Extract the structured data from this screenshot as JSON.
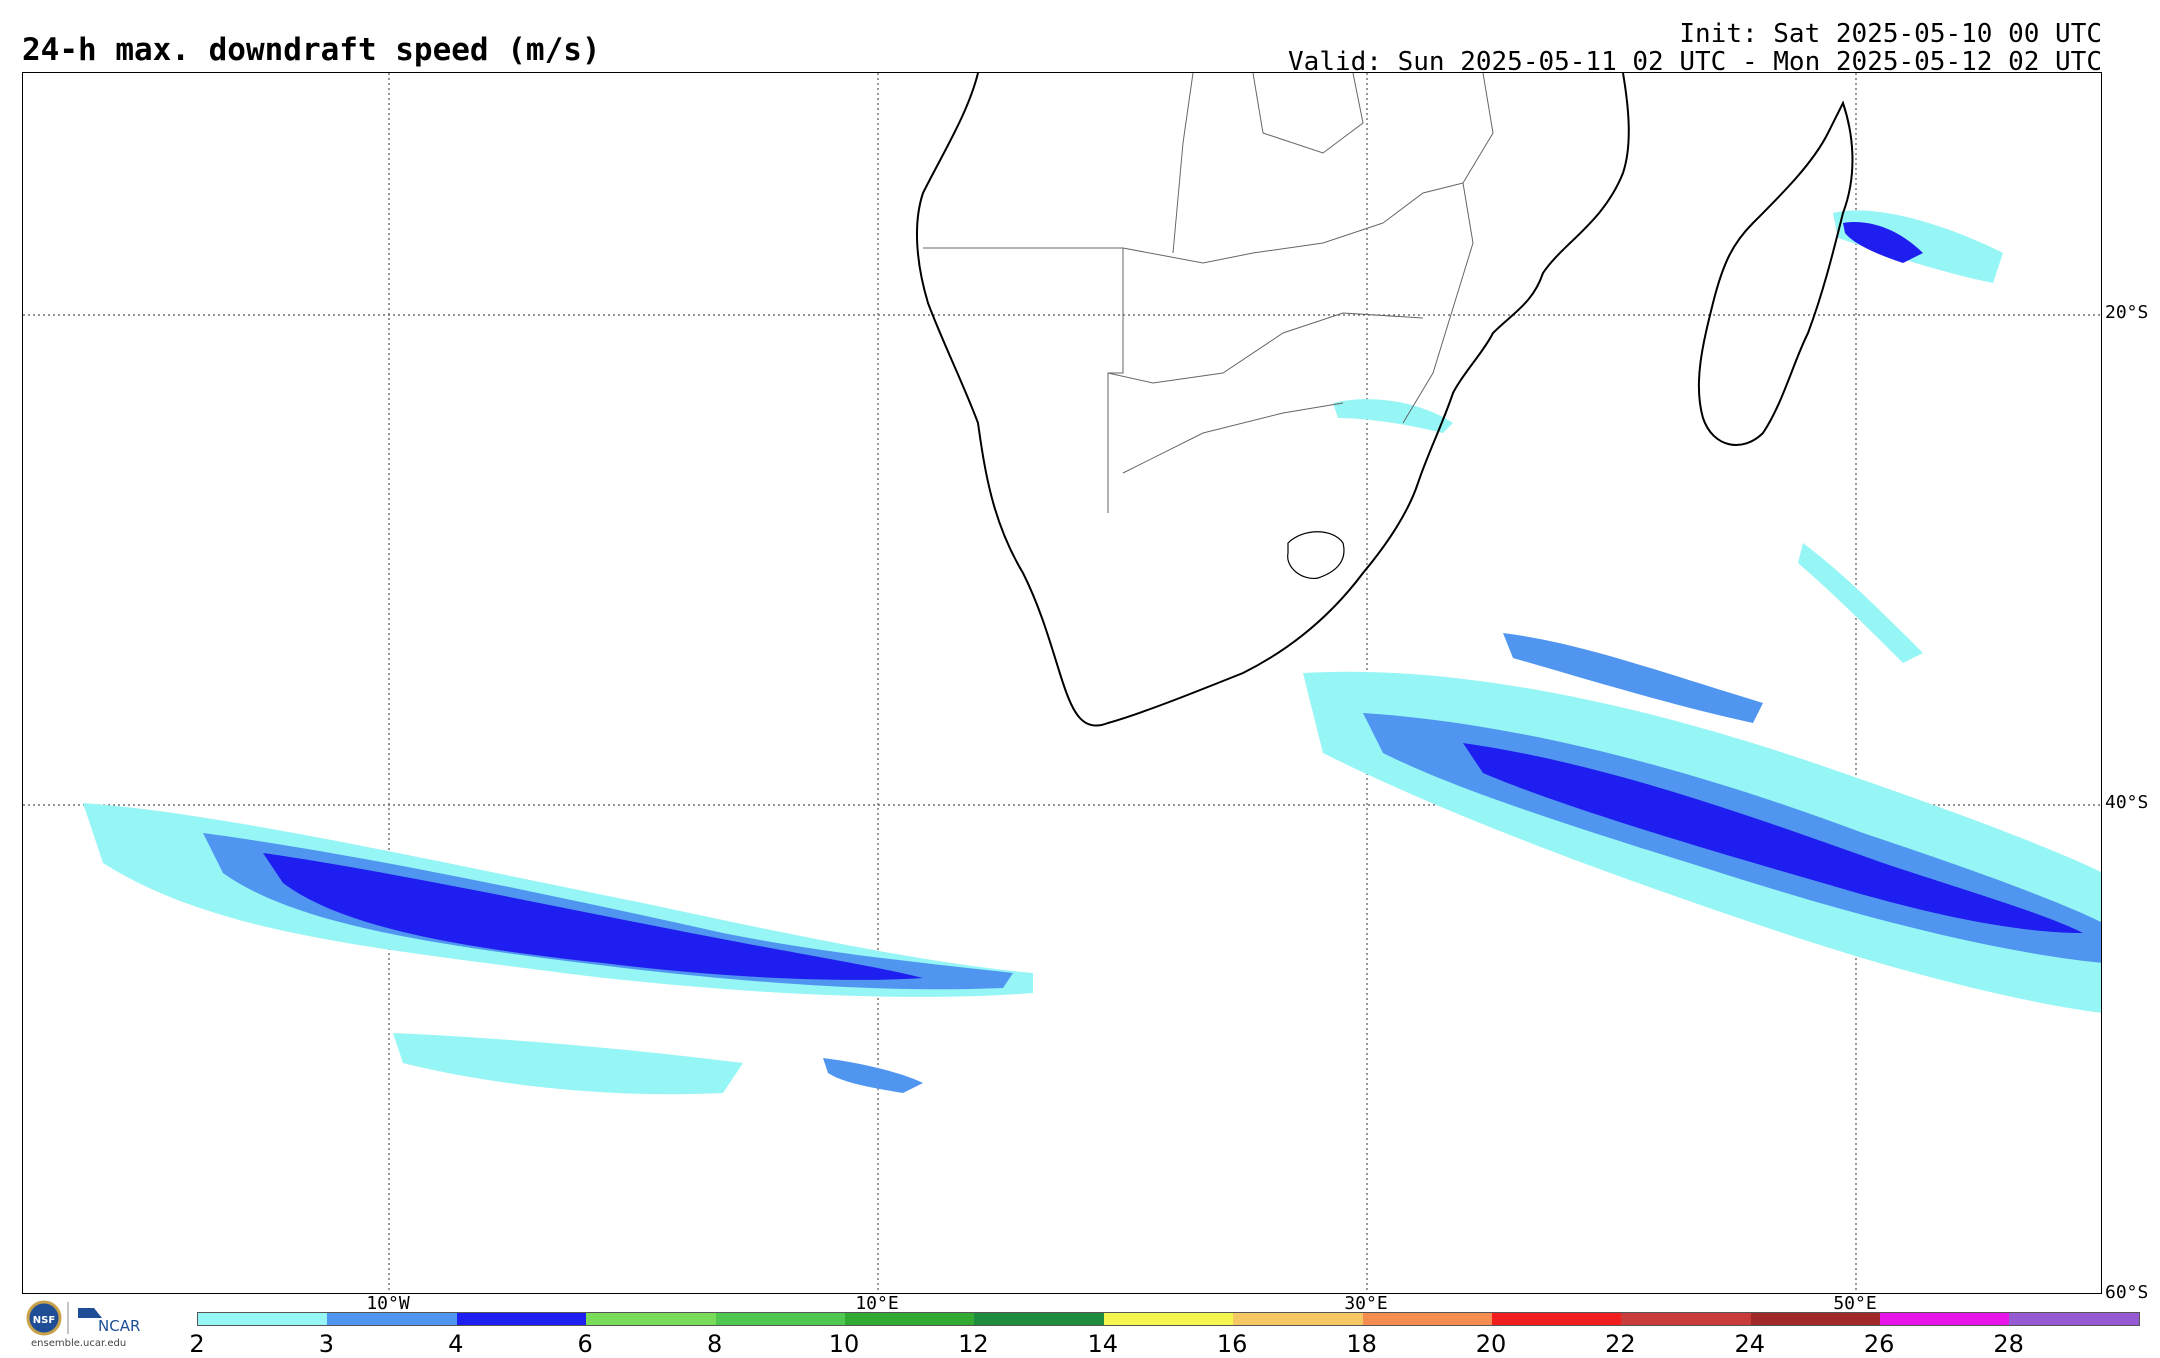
{
  "header": {
    "title": "24-h max. downdraft speed (m/s)",
    "init": "Init: Sat 2025-05-10 00 UTC",
    "valid": "Valid: Sun 2025-05-11 02 UTC - Mon 2025-05-12 02 UTC"
  },
  "map": {
    "lat_labels": [
      "20°S",
      "40°S",
      "60°S"
    ],
    "lon_labels": [
      "10°W",
      "10°E",
      "30°E",
      "50°E"
    ]
  },
  "colorbar": {
    "ticks": [
      "2",
      "3",
      "4",
      "6",
      "8",
      "10",
      "12",
      "14",
      "16",
      "18",
      "20",
      "22",
      "24",
      "26",
      "28"
    ],
    "colors": [
      "#96f5f5",
      "#5096f0",
      "#1e1ef0",
      "#78dc5a",
      "#50c850",
      "#32aa32",
      "#1e8c3c",
      "#f5f550",
      "#f5c864",
      "#f58c50",
      "#f01e1e",
      "#c83c3c",
      "#a02828",
      "#e614e6",
      "#965ad2"
    ]
  },
  "logo": {
    "nsf": "NSF",
    "ncar": "NCAR",
    "url": "ensemble.ucar.edu"
  }
}
